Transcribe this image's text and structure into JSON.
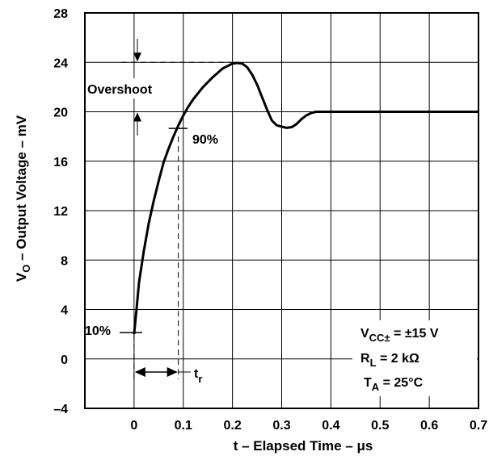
{
  "chart_data": {
    "type": "line",
    "xlabel": "t – Elapsed Time – μs",
    "ylabel": {
      "main": "V",
      "sub": "O",
      "rest": " – Output Voltage – mV"
    },
    "xlim": [
      -0.1,
      0.7
    ],
    "ylim": [
      -4,
      28
    ],
    "grid": true,
    "x_ticks": [
      "0",
      "0.1",
      "0.2",
      "0.3",
      "0.4",
      "0.5",
      "0.6",
      "0.7"
    ],
    "y_ticks": [
      "–4",
      "0",
      "4",
      "8",
      "12",
      "16",
      "20",
      "24",
      "28"
    ],
    "series": [
      {
        "x": [
          0.0,
          0.005,
          0.01,
          0.02,
          0.03,
          0.04,
          0.05,
          0.06,
          0.07,
          0.08,
          0.09,
          0.1,
          0.11,
          0.12,
          0.14,
          0.16,
          0.18,
          0.2,
          0.21,
          0.22,
          0.23,
          0.24,
          0.25,
          0.26,
          0.27,
          0.28,
          0.29,
          0.3,
          0.31,
          0.32,
          0.33,
          0.34,
          0.35,
          0.36,
          0.37,
          0.4,
          0.5,
          0.6,
          0.7
        ],
        "y": [
          2.0,
          4.0,
          6.2,
          8.8,
          11.0,
          12.8,
          14.4,
          15.9,
          17.0,
          18.0,
          18.9,
          19.7,
          20.4,
          21.0,
          22.0,
          22.8,
          23.5,
          23.9,
          23.95,
          23.9,
          23.6,
          23.0,
          22.2,
          21.2,
          20.2,
          19.3,
          18.9,
          18.8,
          18.7,
          18.75,
          19.0,
          19.4,
          19.7,
          19.9,
          20.0,
          20.0,
          20.0,
          20.0,
          20.0
        ]
      }
    ],
    "annotations": {
      "overshoot": "Overshoot",
      "ninety": "90%",
      "ten": "10%",
      "rise_main": "t",
      "rise_sub": "r",
      "cond1_main": "V",
      "cond1_sub": "CC±",
      "cond1_rest": " = ±15 V",
      "cond2_main": "R",
      "cond2_sub": "L",
      "cond2_rest": " =  2 kΩ",
      "cond3_main": "T",
      "cond3_sub": "A",
      "cond3_rest": " = 25°C"
    }
  }
}
